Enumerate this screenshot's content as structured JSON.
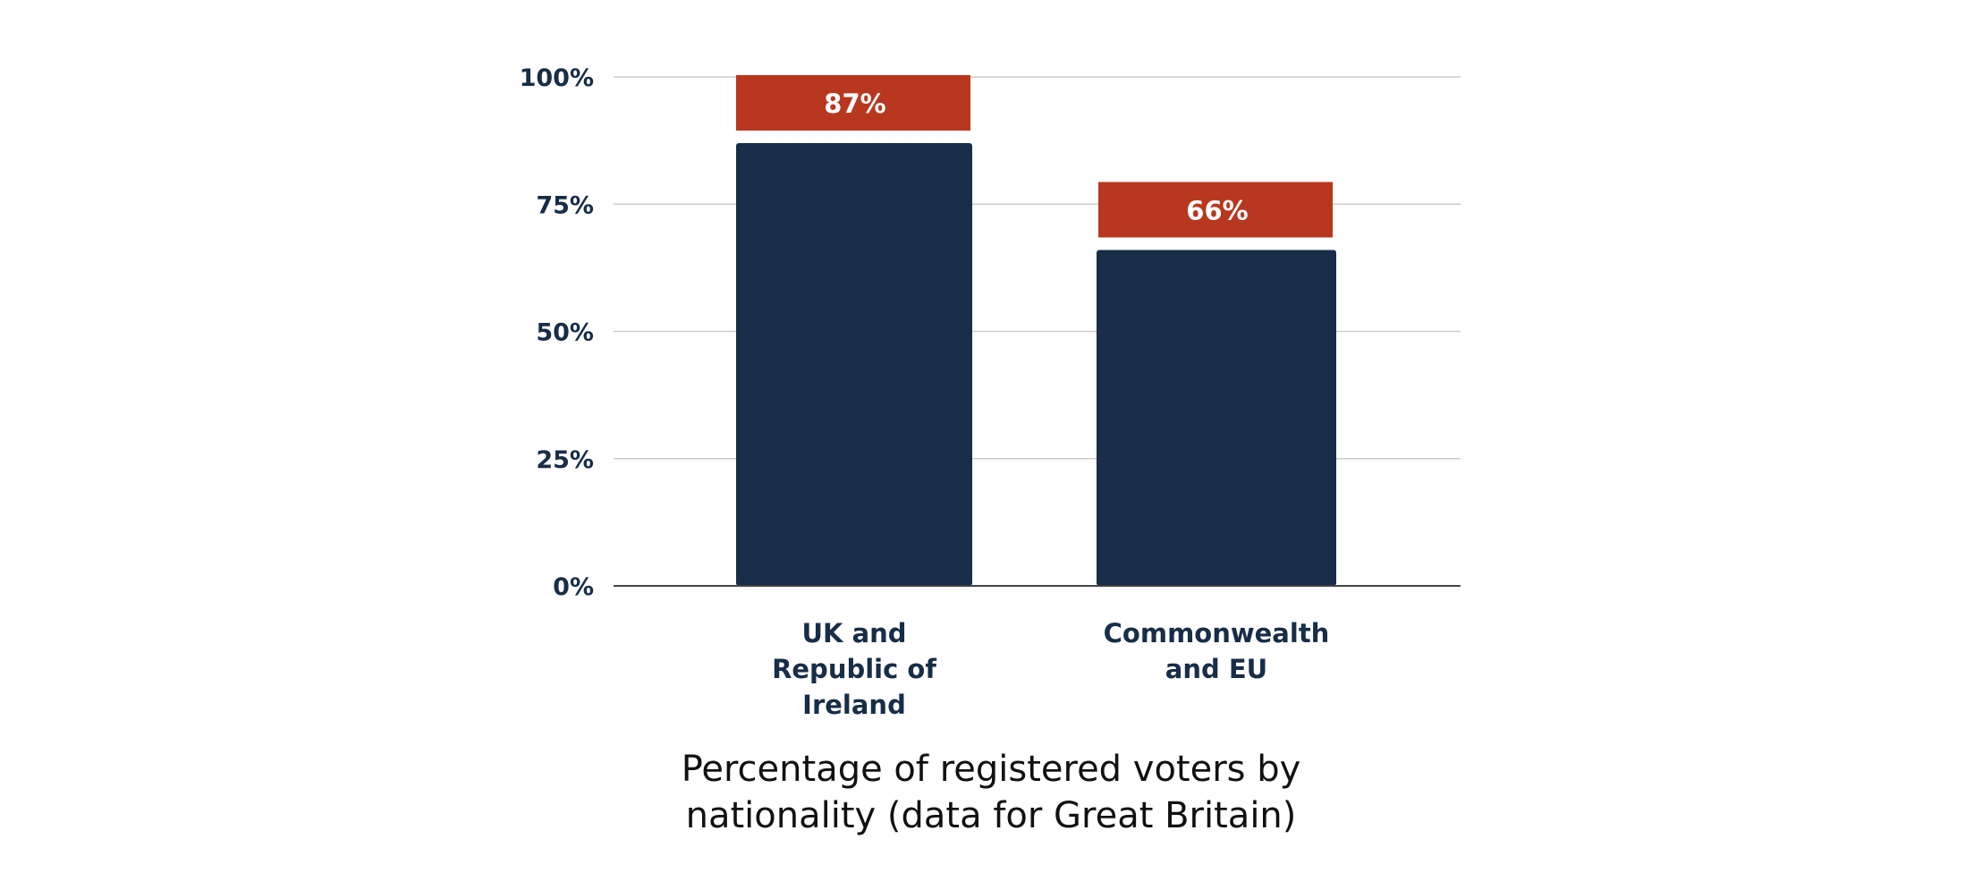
{
  "chart_data": {
    "type": "bar",
    "categories": [
      [
        "UK and",
        "Republic of",
        "Ireland"
      ],
      [
        "Commonwealth",
        "and EU"
      ]
    ],
    "values": [
      87,
      66
    ],
    "data_labels": [
      "87%",
      "66%"
    ],
    "y_ticks": [
      {
        "value": 0,
        "label": "0%"
      },
      {
        "value": 25,
        "label": "25%"
      },
      {
        "value": 50,
        "label": "50%"
      },
      {
        "value": 75,
        "label": "75%"
      },
      {
        "value": 100,
        "label": "100%"
      }
    ],
    "ylim": [
      0,
      100
    ],
    "title_lines": [
      "Percentage of registered voters by",
      "nationality (data for Great Britain)"
    ],
    "xlabel": "",
    "ylabel": "",
    "grid": true,
    "colors": {
      "bar": "#172d48",
      "label_box": "#b7381e",
      "grid": "#cccccc",
      "axis": "#444444",
      "text": "#172d48"
    }
  }
}
